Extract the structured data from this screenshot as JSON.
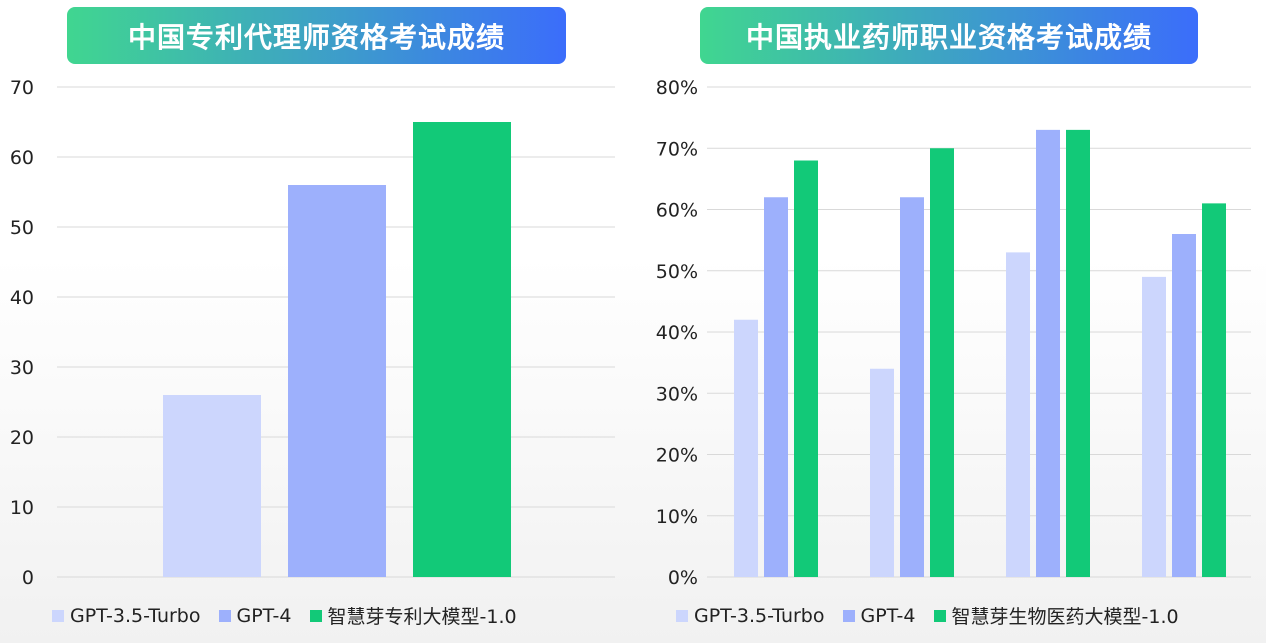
{
  "chart_data": [
    {
      "type": "bar",
      "title": "中国专利代理师资格考试成绩",
      "ylim": [
        0,
        70
      ],
      "yticks": [
        0,
        10,
        20,
        30,
        40,
        50,
        60,
        70
      ],
      "ytick_format": "number",
      "grid": true,
      "legend": "bottom",
      "categories": [
        ""
      ],
      "series": [
        {
          "name": "GPT-3.5-Turbo",
          "color": "#ccd6fd",
          "values": [
            26
          ]
        },
        {
          "name": "GPT-4",
          "color": "#9db0fc",
          "values": [
            56
          ]
        },
        {
          "name": "智慧芽专利大模型-1.0",
          "color": "#12c978",
          "values": [
            65
          ]
        }
      ]
    },
    {
      "type": "bar",
      "title": "中国执业药师职业资格考试成绩",
      "ylim": [
        0,
        80
      ],
      "yticks": [
        0,
        10,
        20,
        30,
        40,
        50,
        60,
        70,
        80
      ],
      "ytick_format": "percent",
      "grid": true,
      "legend": "bottom",
      "categories": [
        "",
        "",
        "",
        ""
      ],
      "series": [
        {
          "name": "GPT-3.5-Turbo",
          "color": "#ccd6fd",
          "values": [
            42,
            34,
            53,
            49
          ]
        },
        {
          "name": "GPT-4",
          "color": "#9db0fc",
          "values": [
            62,
            62,
            73,
            56
          ]
        },
        {
          "name": "智慧芽生物医药大模型-1.0",
          "color": "#12c978",
          "values": [
            68,
            70,
            73,
            61
          ]
        }
      ]
    }
  ]
}
